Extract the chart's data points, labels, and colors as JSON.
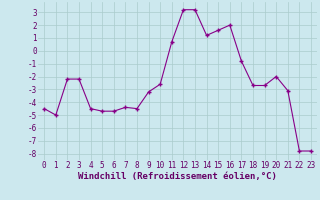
{
  "x": [
    0,
    1,
    2,
    3,
    4,
    5,
    6,
    7,
    8,
    9,
    10,
    11,
    12,
    13,
    14,
    15,
    16,
    17,
    18,
    19,
    20,
    21,
    22,
    23
  ],
  "y": [
    -4.5,
    -5.0,
    -2.2,
    -2.2,
    -4.5,
    -4.7,
    -4.7,
    -4.4,
    -4.5,
    -3.2,
    -2.6,
    0.7,
    3.2,
    3.2,
    1.2,
    1.6,
    2.0,
    -0.8,
    -2.7,
    -2.7,
    -2.0,
    -3.1,
    -7.8,
    -7.8
  ],
  "line_color": "#880088",
  "marker": "+",
  "bg_color": "#cce8ee",
  "grid_color": "#aacccc",
  "xlabel": "Windchill (Refroidissement éolien,°C)",
  "xlim": [
    -0.5,
    23.5
  ],
  "ylim": [
    -8.5,
    3.8
  ],
  "yticks": [
    -8,
    -7,
    -6,
    -5,
    -4,
    -3,
    -2,
    -1,
    0,
    1,
    2,
    3
  ],
  "xticks": [
    0,
    1,
    2,
    3,
    4,
    5,
    6,
    7,
    8,
    9,
    10,
    11,
    12,
    13,
    14,
    15,
    16,
    17,
    18,
    19,
    20,
    21,
    22,
    23
  ],
  "tick_fontsize": 5.5,
  "xlabel_fontsize": 6.5,
  "xlabel_bold": true
}
